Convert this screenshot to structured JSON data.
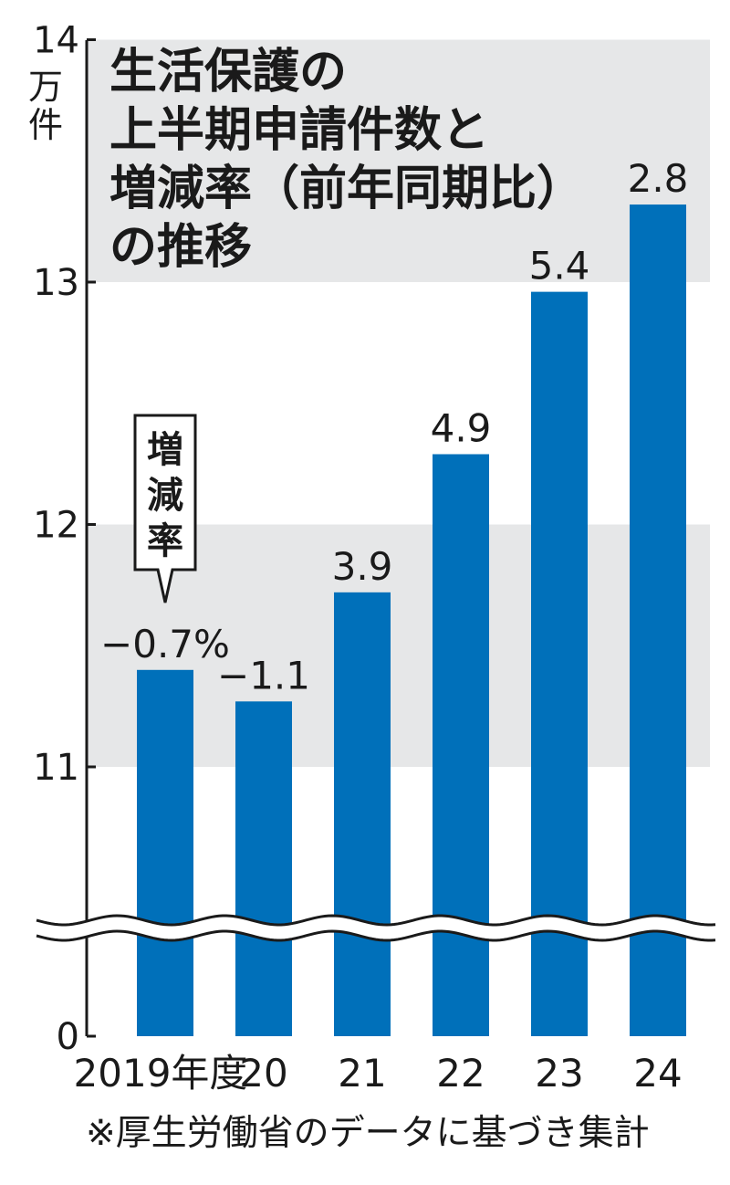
{
  "chart_data": {
    "type": "bar",
    "title_lines": [
      "生活保護の",
      "上半期申請件数と",
      "増減率（前年同期比）",
      "の推移"
    ],
    "unit_lines": [
      "万",
      "件"
    ],
    "categories": [
      "2019年度",
      "20",
      "21",
      "22",
      "23",
      "24"
    ],
    "series": [
      {
        "values": [
          11.4,
          11.27,
          11.72,
          12.29,
          12.96,
          13.32
        ],
        "data_labels": [
          "−0.7%",
          "−1.1",
          "3.9",
          "4.9",
          "5.4",
          "2.8"
        ]
      }
    ],
    "y_ticks": [
      {
        "value": 0,
        "label": "0"
      },
      {
        "value": 11,
        "label": "11"
      },
      {
        "value": 12,
        "label": "12"
      },
      {
        "value": 13,
        "label": "13"
      },
      {
        "value": 14,
        "label": "14"
      }
    ],
    "ylim": [
      0,
      14
    ],
    "axis_break": "between 0 and 11",
    "callout": "増減率",
    "note": "※厚生労働省のデータに基づき集計",
    "bar_color": "#0070ba",
    "band_color": "#e6e7e8"
  }
}
